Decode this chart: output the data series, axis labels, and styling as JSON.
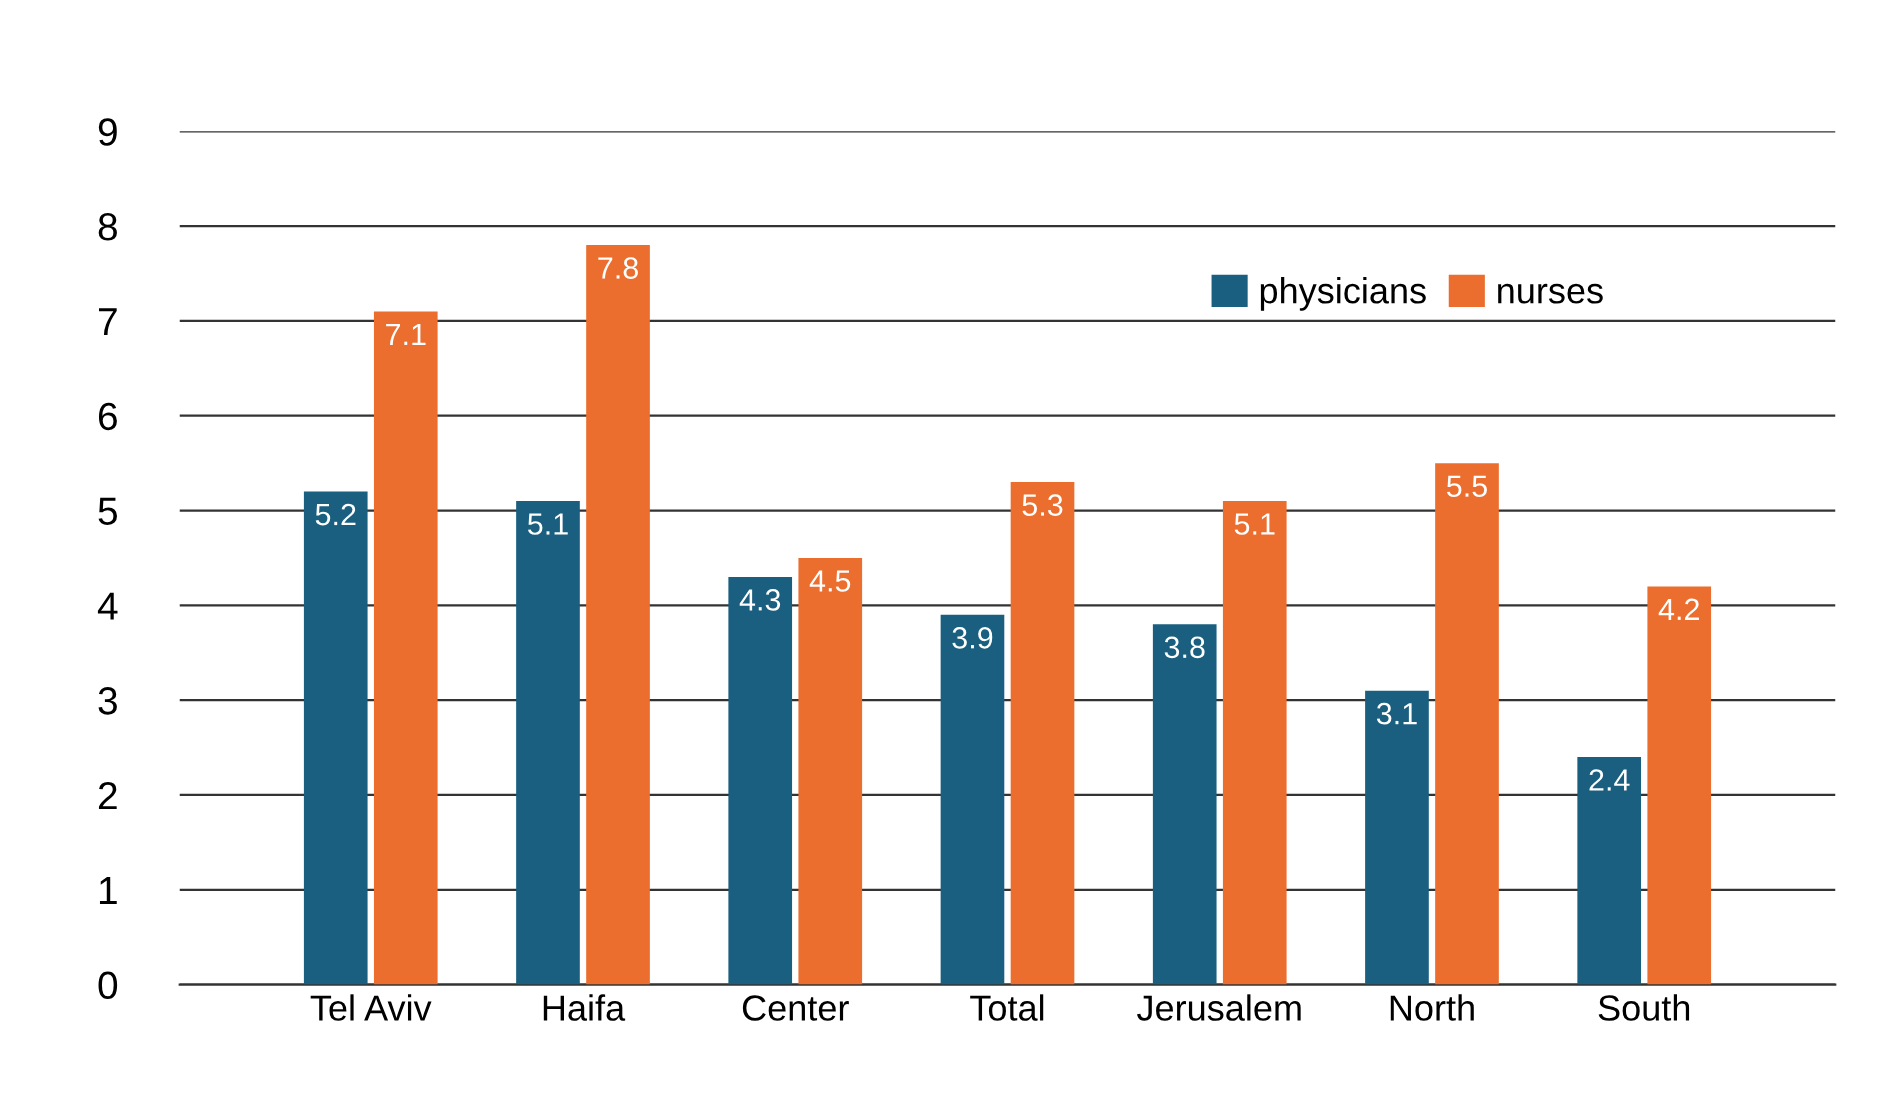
{
  "chart_data": {
    "type": "bar",
    "categories": [
      "Tel Aviv",
      "Haifa",
      "Center",
      "Total",
      "Jerusalem",
      "North",
      "South"
    ],
    "series": [
      {
        "name": "physicians",
        "color": "#1a5f7f",
        "values": [
          5.2,
          5.1,
          4.3,
          3.9,
          3.8,
          3.1,
          2.4
        ]
      },
      {
        "name": "nurses",
        "color": "#eb6e2f",
        "values": [
          7.1,
          7.8,
          4.5,
          5.3,
          5.1,
          5.5,
          4.2
        ]
      }
    ],
    "ylim": [
      0,
      9
    ],
    "yticks": [
      0,
      1,
      2,
      3,
      4,
      5,
      6,
      7,
      8,
      9
    ],
    "grid": "y",
    "legend": "top right",
    "data_labels": true
  }
}
